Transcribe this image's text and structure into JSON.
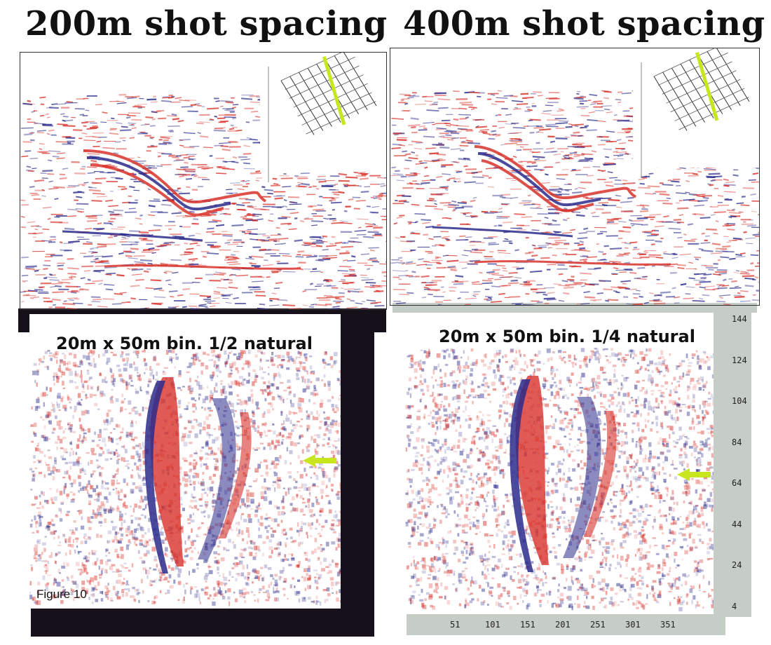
{
  "titles": {
    "left": "200m shot spacing",
    "right": "400m shot spacing"
  },
  "panels": {
    "bottom_left_label": "20m x 50m bin. 1/2 natural",
    "bottom_right_label": "20m x 50m bin. 1/4 natural"
  },
  "figure_caption": "Figure 10",
  "axis": {
    "y_ticks": [
      "144",
      "124",
      "104",
      "84",
      "64",
      "44",
      "24",
      "4"
    ],
    "x_ticks": [
      "51",
      "101",
      "151",
      "201",
      "251",
      "301",
      "351"
    ]
  },
  "colors": {
    "red": "#d8322a",
    "blue": "#2c2c8c",
    "arrow": "#c8e61e",
    "axis_bg": "#c6cdc6"
  }
}
